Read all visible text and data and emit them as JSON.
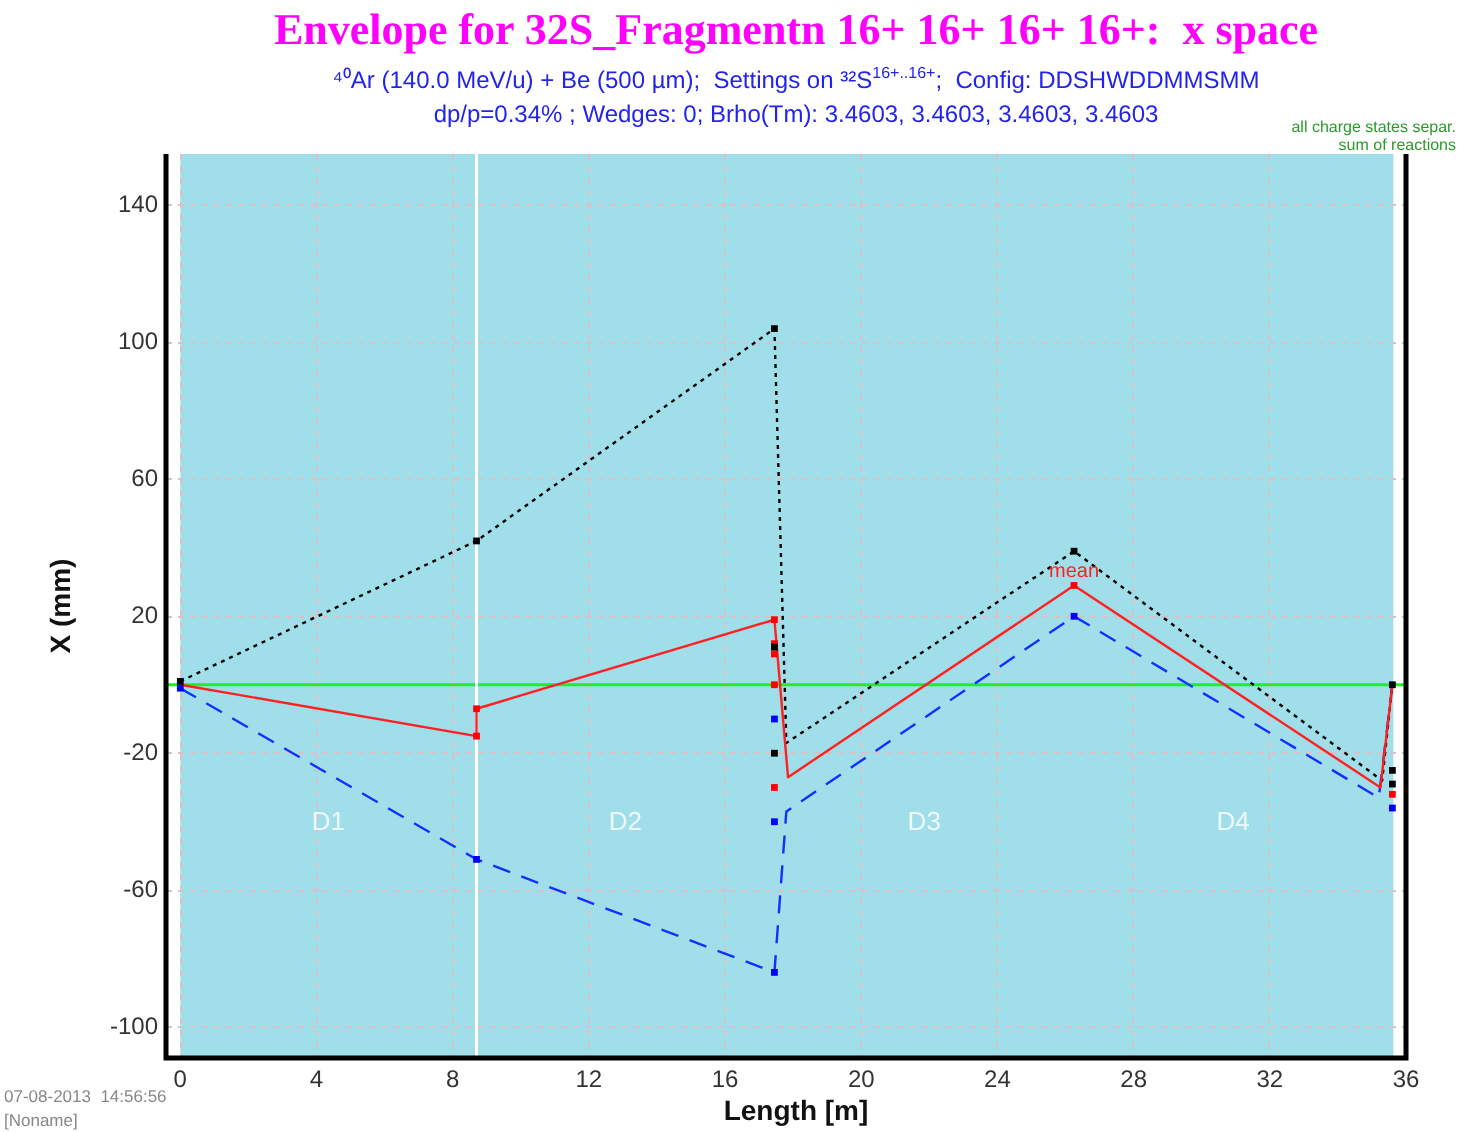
{
  "chart_data": {
    "type": "line",
    "title": "Envelope for 32S_Fragmentn 16+ 16+ 16+ 16+:  x space",
    "subtitle": "⁴⁰Ar (140.0 MeV/u) + Be (500 µm);  Settings on ³²S$^{16+..16+}$;  Config: DDSHWDDMMSMM\ndp/p=0.34% ; Wedges: 0; Brho(Tm): 3.4603, 3.4603, 3.4603, 3.4603",
    "xlabel": "Length [m]",
    "ylabel": "X (mm)",
    "xlim": [
      -0.42,
      36
    ],
    "xticks": [
      0,
      4,
      8,
      12,
      16,
      20,
      24,
      28,
      32,
      36
    ],
    "ylim": [
      -109,
      155
    ],
    "yticks": [
      -100,
      -60,
      -20,
      20,
      60,
      100,
      140
    ],
    "grid": true,
    "legend": false,
    "bands": [
      {
        "axis": "x",
        "from": 0,
        "to": 8.7,
        "label": "D1",
        "color": "#a0dfea"
      },
      {
        "axis": "x",
        "from": 8.7,
        "to": 17.45,
        "label": "D2",
        "color": "#a0dfea"
      },
      {
        "axis": "x",
        "from": 17.45,
        "to": 26.25,
        "label": "D3",
        "color": "#a0dfea"
      },
      {
        "axis": "x",
        "from": 26.25,
        "to": 35.6,
        "label": "D4",
        "color": "#a0dfea"
      }
    ],
    "ref_lines": [
      {
        "axis": "y",
        "value": 0,
        "color": "#22ee22"
      },
      {
        "axis": "x",
        "value": 8.7,
        "color": "#ffffff"
      }
    ],
    "series": [
      {
        "color": "#ff2020",
        "name": "mean",
        "line_style": "solid",
        "marker": "none",
        "x": [
          0,
          8.7,
          8.7,
          17.45,
          17.85,
          26.25,
          35.25,
          35.6
        ],
        "values": [
          0,
          -15,
          -7,
          19,
          -27,
          29,
          -30,
          0
        ]
      },
      {
        "color": "#000000",
        "line_style": "dotted",
        "marker": "none",
        "x": [
          0,
          8.7,
          17.45,
          17.8,
          26.25,
          35.3,
          35.6
        ],
        "values": [
          1,
          42,
          104,
          -17,
          39,
          -28,
          0
        ]
      },
      {
        "color": "#1030ff",
        "line_style": "dashed",
        "marker": "none",
        "x": [
          0,
          8.7,
          17.45,
          17.8,
          26.25,
          35.2,
          35.6
        ],
        "values": [
          -1,
          -51,
          -84,
          -37,
          20,
          -33,
          0
        ]
      },
      {
        "type": "scatter",
        "color": "#000000",
        "marker": "square",
        "x": [
          0,
          8.7,
          17.45,
          17.45,
          17.45,
          26.25,
          35.6,
          35.6,
          35.6
        ],
        "values": [
          1,
          42,
          104,
          11,
          -20,
          39,
          0,
          -25,
          -29
        ]
      },
      {
        "type": "scatter",
        "color": "#ff0000",
        "marker": "square",
        "x": [
          8.7,
          8.7,
          17.45,
          17.45,
          17.45,
          17.45,
          17.45,
          26.25,
          35.6
        ],
        "values": [
          -7,
          -15,
          19,
          12,
          9,
          0,
          -30,
          29,
          -32
        ]
      },
      {
        "type": "scatter",
        "color": "#0000ff",
        "marker": "square",
        "x": [
          0,
          8.7,
          17.45,
          17.45,
          17.45,
          26.25,
          35.6
        ],
        "values": [
          -1,
          -51,
          -84,
          -10,
          -40,
          20,
          -36
        ]
      }
    ],
    "annotations": [
      "all charge states separ.",
      "sum of reactions",
      "07-08-2013  14:56:56",
      "[Noname]"
    ]
  }
}
